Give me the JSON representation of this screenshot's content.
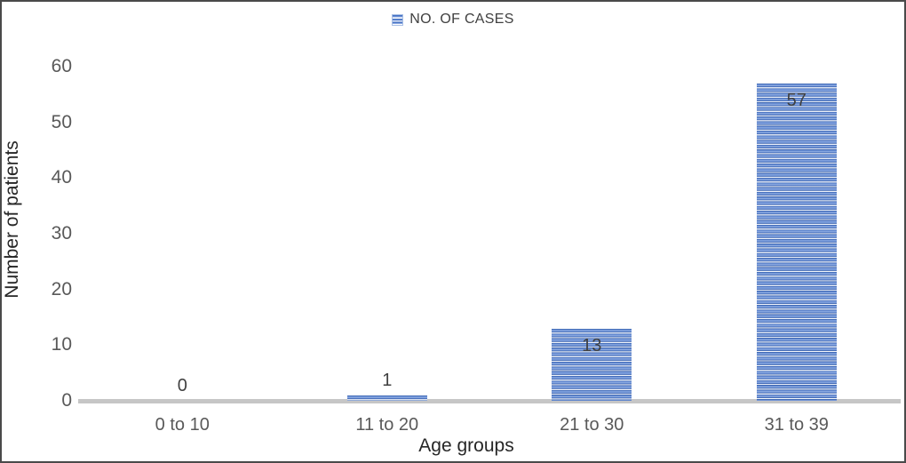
{
  "chart_data": {
    "type": "bar",
    "title": "",
    "legend": "NO. OF CASES",
    "categories": [
      "0 to 10",
      "11 to 20",
      "21 to 30",
      "31 to 39"
    ],
    "values": [
      0,
      1,
      13,
      57
    ],
    "value_labels": [
      "0",
      "1",
      "13",
      "57"
    ],
    "xlabel": "Age groups",
    "ylabel": "Number of patients",
    "ylim": [
      0,
      60
    ],
    "yticks": [
      0,
      10,
      20,
      30,
      40,
      50,
      60
    ],
    "grid": false,
    "legend_position": "top-center",
    "bar_pattern": "horizontal-stripes",
    "colors": {
      "bar": "#4472C4",
      "bar_stripe_light": "#DDE6F5",
      "axis_line": "#C6C6C6",
      "tick_label": "#595959",
      "value_label": "#404040",
      "axis_title": "#262626",
      "legend_text": "#404040",
      "figure_border": "#4A4A4A"
    }
  }
}
